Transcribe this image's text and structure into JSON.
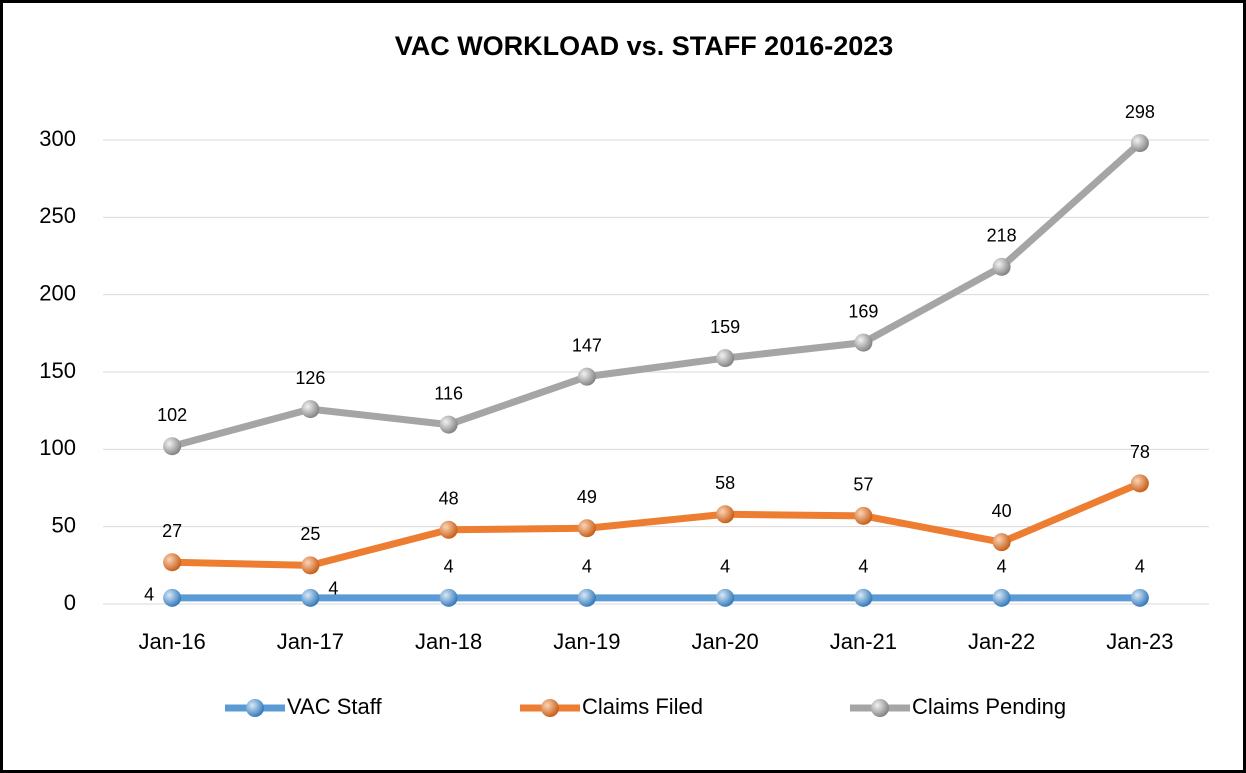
{
  "chart_data": {
    "type": "line",
    "title": "VAC WORKLOAD vs. STAFF 2016-2023",
    "categories": [
      "Jan-16",
      "Jan-17",
      "Jan-18",
      "Jan-19",
      "Jan-20",
      "Jan-21",
      "Jan-22",
      "Jan-23"
    ],
    "series": [
      {
        "name": "VAC Staff",
        "color": "#5b9bd5",
        "values": [
          4,
          4,
          4,
          4,
          4,
          4,
          4,
          4
        ]
      },
      {
        "name": "Claims Filed",
        "color": "#ed7d31",
        "values": [
          27,
          25,
          48,
          49,
          58,
          57,
          40,
          78
        ]
      },
      {
        "name": "Claims Pending",
        "color": "#a5a5a5",
        "values": [
          102,
          126,
          116,
          147,
          159,
          169,
          218,
          298
        ]
      }
    ],
    "ylim": [
      0,
      300
    ],
    "yticks": [
      0,
      50,
      100,
      150,
      200,
      250,
      300
    ],
    "grid": true,
    "legend": "bottom"
  }
}
